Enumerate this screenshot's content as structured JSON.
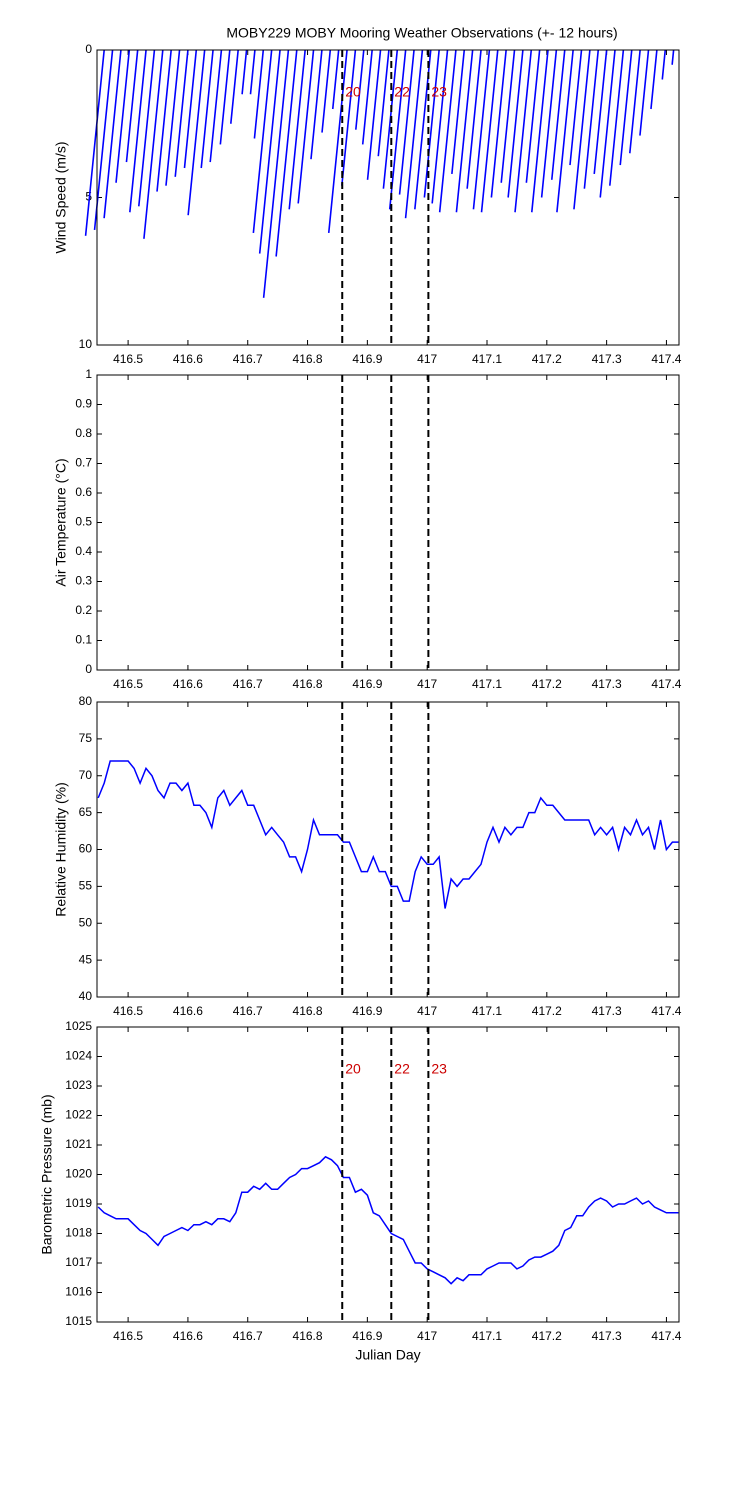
{
  "chart_data": [
    {
      "type": "stick",
      "title": "MOBY229 MOBY Mooring Weather Observations (+- 12 hours)",
      "y_label": "Wind Speed (m/s)",
      "x": [
        416.46,
        416.474,
        416.488,
        416.502,
        416.516,
        416.53,
        416.544,
        416.558,
        416.572,
        416.586,
        416.6,
        416.614,
        416.628,
        416.642,
        416.656,
        416.67,
        416.684,
        416.698,
        416.712,
        416.726,
        416.74,
        416.754,
        416.768,
        416.782,
        416.796,
        416.81,
        416.824,
        416.838,
        416.852,
        416.866,
        416.88,
        416.894,
        416.908,
        416.922,
        416.936,
        416.95,
        416.964,
        416.978,
        416.992,
        417.006,
        417.02,
        417.034,
        417.048,
        417.062,
        417.076,
        417.09,
        417.104,
        417.118,
        417.132,
        417.146,
        417.16,
        417.174,
        417.188,
        417.202,
        417.216,
        417.23,
        417.244,
        417.258,
        417.272,
        417.286,
        417.3,
        417.314,
        417.328,
        417.342,
        417.356,
        417.37,
        417.384,
        417.398,
        417.412
      ],
      "values": [
        6.3,
        6.1,
        5.7,
        4.5,
        3.8,
        5.5,
        5.3,
        6.4,
        4.8,
        4.6,
        4.3,
        4.0,
        5.6,
        4.0,
        3.8,
        3.2,
        2.5,
        1.5,
        1.5,
        3.0,
        6.2,
        6.9,
        8.4,
        7.0,
        5.4,
        5.2,
        3.7,
        2.8,
        2.0,
        6.2,
        4.6,
        2.7,
        3.2,
        4.4,
        3.6,
        4.7,
        5.4,
        4.9,
        5.7,
        5.4,
        5.0,
        5.2,
        5.5,
        4.2,
        5.5,
        4.7,
        5.4,
        5.5,
        5.0,
        4.5,
        5.0,
        5.5,
        4.5,
        5.5,
        5.0,
        4.4,
        5.5,
        3.9,
        5.4,
        4.7,
        4.2,
        5.0,
        4.6,
        3.9,
        3.5,
        2.9,
        2.0,
        1.0,
        0.5
      ],
      "color": "#0000ff",
      "xlim": [
        416.448,
        417.421
      ],
      "xticks": [
        416.5,
        416.6,
        416.7,
        416.8,
        416.9,
        417,
        417.1,
        417.2,
        417.3,
        417.4
      ],
      "ylim": [
        0,
        10
      ],
      "yticks": [
        0,
        5,
        10
      ],
      "y_reversed": true,
      "vlines": [
        416.858,
        416.94,
        417.002
      ],
      "annotations": [
        "20",
        "22",
        "23"
      ],
      "annotation_color": "#cc0000"
    },
    {
      "type": "empty",
      "y_label": "Air Temperature (°C)",
      "xlim": [
        416.448,
        417.421
      ],
      "xticks": [
        416.5,
        416.6,
        416.7,
        416.8,
        416.9,
        417,
        417.1,
        417.2,
        417.3,
        417.4
      ],
      "ylim": [
        0,
        1
      ],
      "yticks": [
        0,
        0.1,
        0.2,
        0.3,
        0.4,
        0.5,
        0.6,
        0.7,
        0.8,
        0.9,
        1
      ],
      "vlines": [
        416.858,
        416.94,
        417.002
      ]
    },
    {
      "type": "line",
      "y_label": "Relative Humidity (%)",
      "x": [
        416.45,
        416.46,
        416.47,
        416.48,
        416.49,
        416.5,
        416.51,
        416.52,
        416.53,
        416.54,
        416.55,
        416.56,
        416.57,
        416.58,
        416.59,
        416.6,
        416.61,
        416.62,
        416.63,
        416.64,
        416.65,
        416.66,
        416.67,
        416.68,
        416.69,
        416.7,
        416.71,
        416.72,
        416.73,
        416.74,
        416.75,
        416.76,
        416.77,
        416.78,
        416.79,
        416.8,
        416.81,
        416.82,
        416.83,
        416.84,
        416.85,
        416.86,
        416.87,
        416.88,
        416.89,
        416.9,
        416.91,
        416.92,
        416.93,
        416.94,
        416.95,
        416.96,
        416.97,
        416.98,
        416.99,
        417,
        417.01,
        417.02,
        417.03,
        417.04,
        417.05,
        417.06,
        417.07,
        417.08,
        417.09,
        417.1,
        417.11,
        417.12,
        417.13,
        417.14,
        417.15,
        417.16,
        417.17,
        417.18,
        417.19,
        417.2,
        417.21,
        417.22,
        417.23,
        417.24,
        417.25,
        417.26,
        417.27,
        417.28,
        417.29,
        417.3,
        417.31,
        417.32,
        417.33,
        417.34,
        417.35,
        417.36,
        417.37,
        417.38,
        417.39,
        417.4,
        417.41,
        417.42
      ],
      "values": [
        67,
        69,
        72,
        72,
        72,
        72,
        71,
        69,
        71,
        70,
        68,
        67,
        69,
        69,
        68,
        69,
        66,
        66,
        65,
        63,
        67,
        68,
        66,
        67,
        68,
        66,
        66,
        64,
        62,
        63,
        62,
        61,
        59,
        59,
        57,
        60,
        64,
        62,
        62,
        62,
        62,
        61,
        61,
        59,
        57,
        57,
        59,
        57,
        57,
        55,
        55,
        53,
        53,
        57,
        59,
        58,
        58,
        59,
        52,
        56,
        55,
        56,
        56,
        57,
        58,
        61,
        63,
        61,
        63,
        62,
        63,
        63,
        65,
        65,
        67,
        66,
        66,
        65,
        64,
        64,
        64,
        64,
        64,
        62,
        63,
        62,
        63,
        60,
        63,
        62,
        64,
        62,
        63,
        60,
        64,
        60,
        61,
        61
      ],
      "color": "#0000ff",
      "xlim": [
        416.448,
        417.421
      ],
      "xticks": [
        416.5,
        416.6,
        416.7,
        416.8,
        416.9,
        417,
        417.1,
        417.2,
        417.3,
        417.4
      ],
      "ylim": [
        40,
        80
      ],
      "yticks": [
        40,
        45,
        50,
        55,
        60,
        65,
        70,
        75,
        80
      ],
      "vlines": [
        416.858,
        416.94,
        417.002
      ]
    },
    {
      "type": "line",
      "y_label": "Barometric Pressure (mb)",
      "x_label": "Julian Day",
      "x": [
        416.45,
        416.46,
        416.47,
        416.48,
        416.49,
        416.5,
        416.51,
        416.52,
        416.53,
        416.54,
        416.55,
        416.56,
        416.57,
        416.58,
        416.59,
        416.6,
        416.61,
        416.62,
        416.63,
        416.64,
        416.65,
        416.66,
        416.67,
        416.68,
        416.69,
        416.7,
        416.71,
        416.72,
        416.73,
        416.74,
        416.75,
        416.76,
        416.77,
        416.78,
        416.79,
        416.8,
        416.81,
        416.82,
        416.83,
        416.84,
        416.85,
        416.86,
        416.87,
        416.88,
        416.89,
        416.9,
        416.91,
        416.92,
        416.93,
        416.94,
        416.95,
        416.96,
        416.97,
        416.98,
        416.99,
        417,
        417.01,
        417.02,
        417.03,
        417.04,
        417.05,
        417.06,
        417.07,
        417.08,
        417.09,
        417.1,
        417.11,
        417.12,
        417.13,
        417.14,
        417.15,
        417.16,
        417.17,
        417.18,
        417.19,
        417.2,
        417.21,
        417.22,
        417.23,
        417.24,
        417.25,
        417.26,
        417.27,
        417.28,
        417.29,
        417.3,
        417.31,
        417.32,
        417.33,
        417.34,
        417.35,
        417.36,
        417.37,
        417.38,
        417.39,
        417.4,
        417.41,
        417.42
      ],
      "values": [
        1018.9,
        1018.7,
        1018.6,
        1018.5,
        1018.5,
        1018.5,
        1018.3,
        1018.1,
        1018.0,
        1017.8,
        1017.6,
        1017.9,
        1018.0,
        1018.1,
        1018.2,
        1018.1,
        1018.3,
        1018.3,
        1018.4,
        1018.3,
        1018.5,
        1018.5,
        1018.4,
        1018.7,
        1019.4,
        1019.4,
        1019.6,
        1019.5,
        1019.7,
        1019.5,
        1019.5,
        1019.7,
        1019.9,
        1020.0,
        1020.2,
        1020.2,
        1020.3,
        1020.4,
        1020.6,
        1020.5,
        1020.3,
        1019.9,
        1019.9,
        1019.4,
        1019.5,
        1019.3,
        1018.7,
        1018.6,
        1018.3,
        1018.0,
        1017.9,
        1017.8,
        1017.4,
        1017.0,
        1017.0,
        1016.8,
        1016.7,
        1016.6,
        1016.5,
        1016.3,
        1016.5,
        1016.4,
        1016.6,
        1016.6,
        1016.6,
        1016.8,
        1016.9,
        1017.0,
        1017.0,
        1017.0,
        1016.8,
        1016.9,
        1017.1,
        1017.2,
        1017.2,
        1017.3,
        1017.4,
        1017.6,
        1018.1,
        1018.2,
        1018.6,
        1018.6,
        1018.9,
        1019.1,
        1019.2,
        1019.1,
        1018.9,
        1019.0,
        1019.0,
        1019.1,
        1019.2,
        1019.0,
        1019.1,
        1018.9,
        1018.8,
        1018.7,
        1018.7,
        1018.7
      ],
      "color": "#0000ff",
      "xlim": [
        416.448,
        417.421
      ],
      "xticks": [
        416.5,
        416.6,
        416.7,
        416.8,
        416.9,
        417,
        417.1,
        417.2,
        417.3,
        417.4
      ],
      "ylim": [
        1015,
        1025
      ],
      "yticks": [
        1015,
        1016,
        1017,
        1018,
        1019,
        1020,
        1021,
        1022,
        1023,
        1024,
        1025
      ],
      "vlines": [
        416.858,
        416.94,
        417.002
      ],
      "annotations": [
        "20",
        "22",
        "23"
      ],
      "annotation_color": "#cc0000"
    }
  ]
}
